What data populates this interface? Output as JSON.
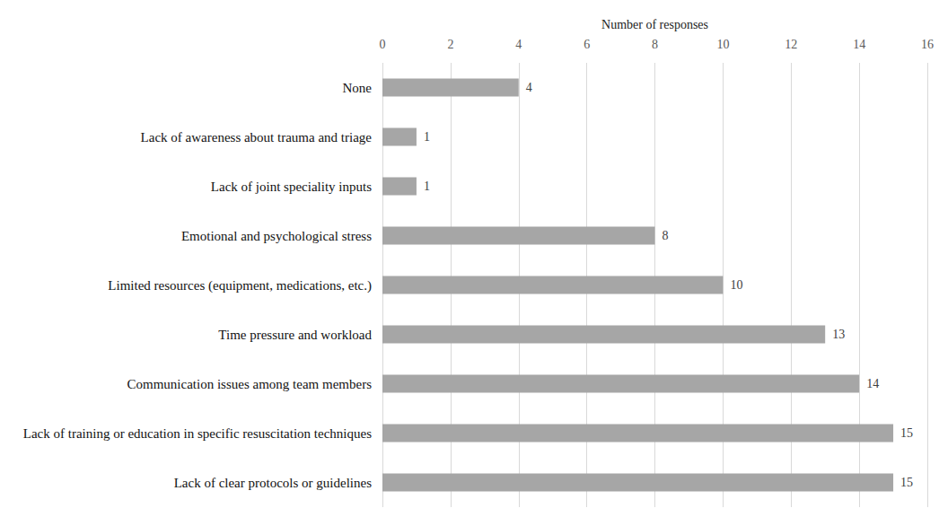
{
  "chart_data": {
    "type": "bar",
    "orientation": "horizontal",
    "xlabel": "Number of responses",
    "categories": [
      "None",
      "Lack of awareness about trauma and triage",
      "Lack of joint speciality inputs",
      "Emotional and psychological stress",
      "Limited resources (equipment, medications, etc.)",
      "Time pressure and workload",
      "Communication issues among team members",
      "Lack of training or education in specific resuscitation techniques",
      "Lack of clear protocols or guidelines"
    ],
    "values": [
      4,
      1,
      1,
      8,
      10,
      13,
      14,
      15,
      15
    ],
    "color": "#a6a6a6",
    "xlim": [
      0,
      16
    ],
    "xticks": [
      0,
      2,
      4,
      6,
      8,
      10,
      12,
      14,
      16
    ],
    "grid": true,
    "data_labels": true
  }
}
